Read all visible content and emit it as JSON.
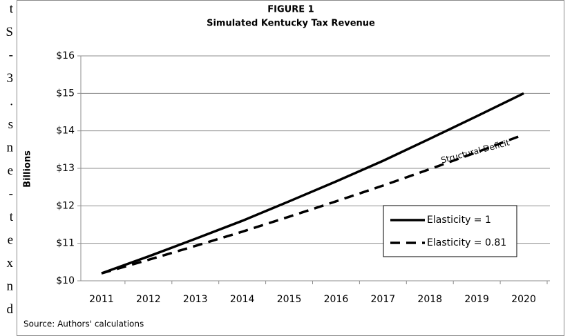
{
  "margin_fragments": [
    "t",
    "S",
    "-",
    "3",
    ".",
    "s",
    "n",
    "e",
    "-",
    "t",
    "e",
    "x",
    "n",
    "d"
  ],
  "chart_data": {
    "type": "line",
    "title": "FIGURE 1",
    "subtitle": "Simulated Kentucky Tax Revenue",
    "ylabel": "Billions",
    "source": "Source: Authors' calculations",
    "annotation": "Structural Deficit",
    "categories": [
      "2011",
      "2012",
      "2013",
      "2014",
      "2015",
      "2016",
      "2017",
      "2018",
      "2019",
      "2020"
    ],
    "series": [
      {
        "name": "Elasticity = 1",
        "color": "#000000",
        "dash": "solid",
        "values": [
          10.2,
          10.65,
          11.12,
          11.6,
          12.12,
          12.65,
          13.2,
          13.79,
          14.39,
          15.0
        ]
      },
      {
        "name": "Elasticity = 0.81",
        "color": "#000000",
        "dash": "dashed",
        "values": [
          10.2,
          10.56,
          10.93,
          11.31,
          11.71,
          12.12,
          12.54,
          12.98,
          13.43,
          13.9
        ]
      }
    ],
    "ylim": [
      10,
      16
    ],
    "yticks": [
      {
        "value": 10,
        "label": "$10"
      },
      {
        "value": 11,
        "label": "$11"
      },
      {
        "value": 12,
        "label": "$12"
      },
      {
        "value": 13,
        "label": "$13"
      },
      {
        "value": 14,
        "label": "$14"
      },
      {
        "value": 15,
        "label": "$15"
      },
      {
        "value": 16,
        "label": "$16"
      }
    ],
    "grid": true,
    "legend": "lower-right"
  }
}
